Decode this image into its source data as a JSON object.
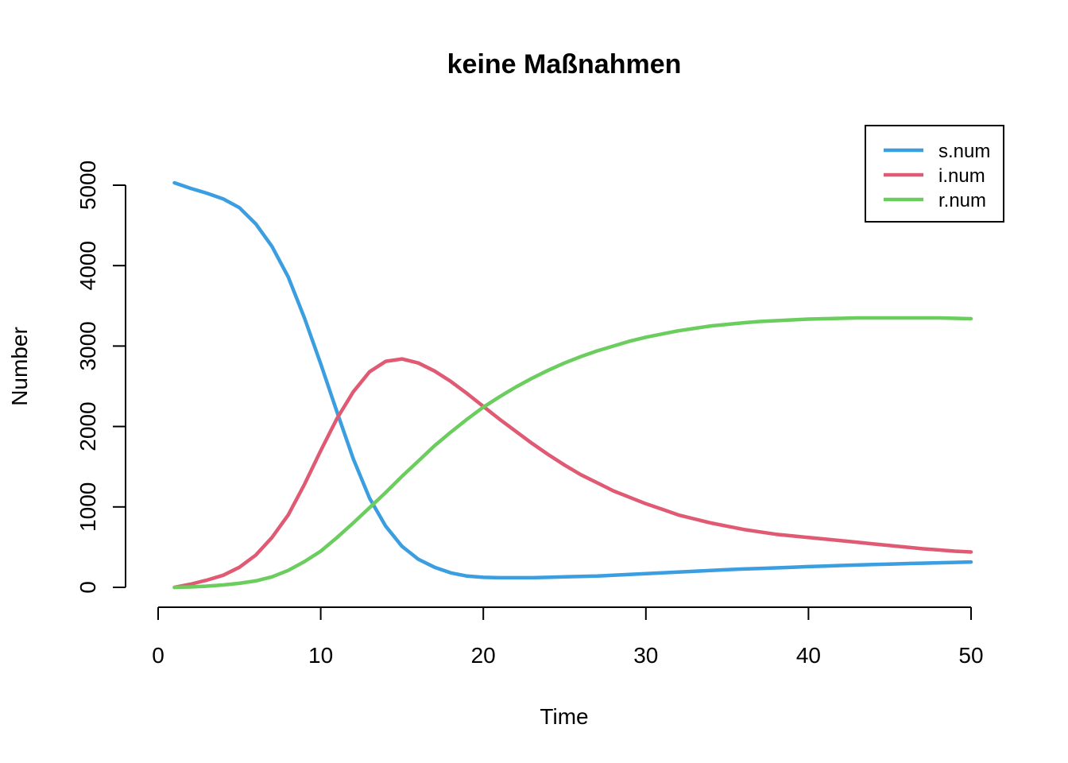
{
  "chart_data": {
    "type": "line",
    "title": "keine Maßnahmen",
    "xlabel": "Time",
    "ylabel": "Number",
    "xlim": [
      0,
      50
    ],
    "ylim": [
      0,
      5000
    ],
    "x_ticks": [
      0,
      10,
      20,
      30,
      40,
      50
    ],
    "y_ticks": [
      0,
      1000,
      2000,
      3000,
      4000,
      5000
    ],
    "grid": false,
    "legend_position": "top-right",
    "x": [
      1,
      2,
      3,
      4,
      5,
      6,
      7,
      8,
      9,
      10,
      11,
      12,
      13,
      14,
      15,
      16,
      17,
      18,
      19,
      20,
      21,
      22,
      23,
      24,
      25,
      26,
      27,
      28,
      29,
      30,
      31,
      32,
      33,
      34,
      35,
      36,
      37,
      38,
      39,
      40,
      41,
      42,
      43,
      44,
      45,
      46,
      47,
      48,
      49,
      50
    ],
    "series": [
      {
        "name": "s.num",
        "color": "#3b9ee0",
        "values": [
          5030,
          4960,
          4900,
          4830,
          4720,
          4520,
          4240,
          3860,
          3350,
          2780,
          2180,
          1600,
          1110,
          760,
          510,
          350,
          250,
          180,
          140,
          125,
          120,
          120,
          120,
          125,
          130,
          135,
          140,
          150,
          160,
          170,
          180,
          190,
          200,
          210,
          220,
          228,
          235,
          242,
          250,
          258,
          265,
          272,
          278,
          284,
          290,
          295,
          300,
          305,
          310,
          315
        ]
      },
      {
        "name": "i.num",
        "color": "#df5a72",
        "values": [
          0,
          40,
          90,
          150,
          250,
          400,
          620,
          900,
          1280,
          1700,
          2100,
          2430,
          2680,
          2810,
          2840,
          2790,
          2690,
          2560,
          2410,
          2250,
          2090,
          1940,
          1790,
          1650,
          1520,
          1400,
          1300,
          1200,
          1120,
          1040,
          970,
          900,
          850,
          800,
          760,
          720,
          690,
          660,
          640,
          620,
          600,
          580,
          560,
          540,
          520,
          500,
          480,
          465,
          450,
          440
        ]
      },
      {
        "name": "r.num",
        "color": "#6acd5e",
        "values": [
          0,
          5,
          15,
          30,
          50,
          80,
          130,
          210,
          320,
          450,
          620,
          800,
          990,
          1180,
          1380,
          1570,
          1760,
          1930,
          2090,
          2240,
          2370,
          2490,
          2600,
          2700,
          2790,
          2870,
          2940,
          3000,
          3060,
          3110,
          3150,
          3190,
          3220,
          3250,
          3270,
          3290,
          3305,
          3315,
          3325,
          3335,
          3340,
          3345,
          3350,
          3350,
          3350,
          3350,
          3350,
          3350,
          3345,
          3340
        ]
      }
    ]
  }
}
